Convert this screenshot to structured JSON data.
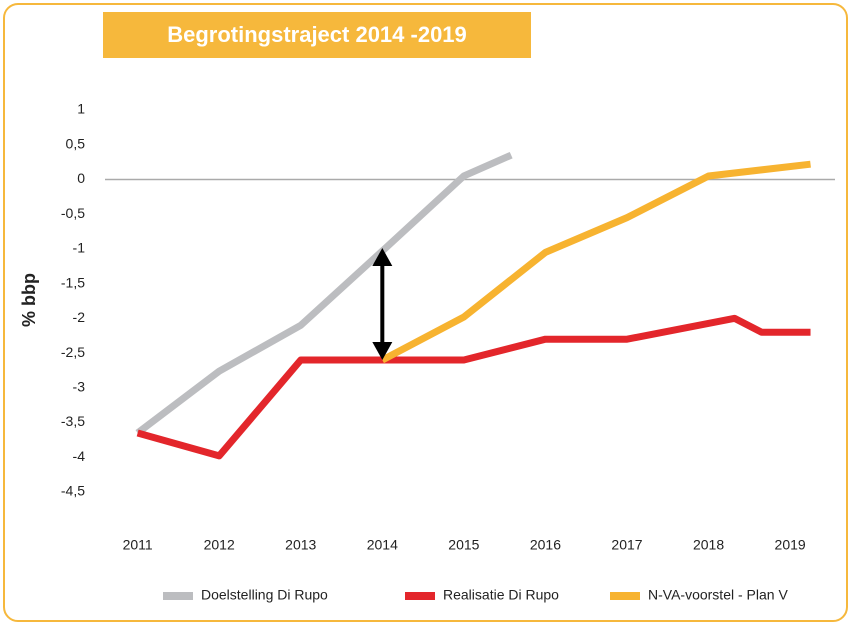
{
  "chart_data": {
    "type": "line",
    "title": "Begrotingstraject 2014 -2019",
    "ylabel": "% bbp",
    "xlim": [
      2010.6,
      2019.55
    ],
    "xticks": [
      2011,
      2012,
      2013,
      2014,
      2015,
      2016,
      2017,
      2018,
      2019
    ],
    "ylim": [
      -4.5,
      1
    ],
    "yticks": [
      1,
      {
        "value": 0.5,
        "label": "0,5"
      },
      0,
      {
        "value": -0.5,
        "label": "-0,5"
      },
      -1,
      {
        "value": -1.5,
        "label": "-1,5"
      },
      -2,
      {
        "value": -2.5,
        "label": "-2,5"
      },
      -3,
      {
        "value": -3.5,
        "label": "-3,5"
      },
      -4,
      {
        "value": -4.5,
        "label": "-4,5"
      }
    ],
    "grid": false,
    "series": [
      {
        "name": "Doelstelling Di Rupo",
        "color": "#bcbdc0",
        "x": [
          2011,
          2012,
          2013,
          2014,
          2015,
          2015.58
        ],
        "values": [
          -3.65,
          -2.76,
          -2.1,
          -1.03,
          0.05,
          0.35
        ]
      },
      {
        "name": "Realisatie Di Rupo",
        "color": "#e3262b",
        "x": [
          2011,
          2012,
          2013,
          2014,
          2015,
          2016,
          2017,
          2018.32,
          2018.65,
          2019.25
        ],
        "values": [
          -3.65,
          -3.98,
          -2.6,
          -2.6,
          -2.6,
          -2.3,
          -2.3,
          -2.0,
          -2.2,
          -2.2
        ]
      },
      {
        "name": "N-VA-voorstel -  Plan V",
        "color": "#f7b330",
        "x": [
          2014,
          2015,
          2016,
          2017,
          2018,
          2019.25
        ],
        "values": [
          -2.6,
          -1.98,
          -1.05,
          -0.55,
          0.05,
          0.22
        ]
      }
    ]
  }
}
